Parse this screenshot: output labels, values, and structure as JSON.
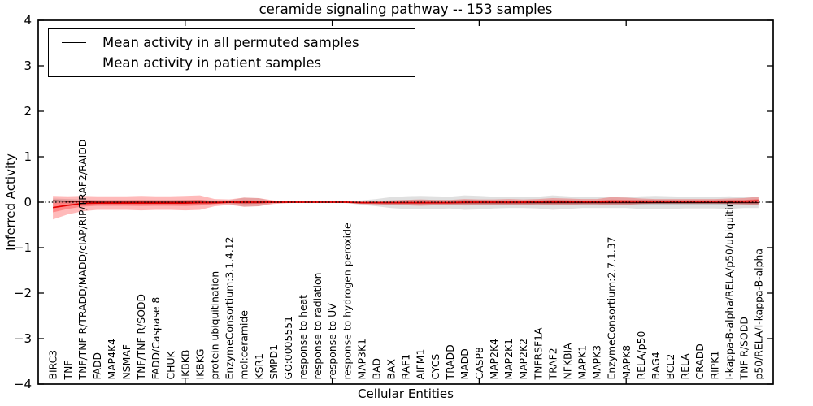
{
  "title": "ceramide signaling pathway -- 153 samples",
  "xlabel": "Cellular Entities",
  "ylabel": "Inferred Activity",
  "legend": [
    {
      "label": "Mean activity in all permuted samples",
      "color": "#000000"
    },
    {
      "label": "Mean activity in patient samples",
      "color": "#ff0000"
    }
  ],
  "y_tick_labels": [
    "4",
    "3",
    "2",
    "1",
    "0",
    "−1",
    "−2",
    "−3",
    "−4"
  ],
  "chart_data": {
    "type": "line",
    "title": "ceramide signaling pathway -- 153 samples",
    "xlabel": "Cellular Entities",
    "ylabel": "Inferred Activity",
    "ylim": [
      -4,
      4
    ],
    "y_ticks": [
      4,
      3,
      2,
      1,
      0,
      -1,
      -2,
      -3,
      -4
    ],
    "x_major_ticks": [
      10,
      20,
      30,
      40
    ],
    "grid": false,
    "legend_position": "upper left",
    "zero_line": true,
    "categories": [
      "BIRC3",
      "TNF",
      "TNF/TNF R/TRADD/MADD/cIAP/RIP/TRAF2/RAIDD",
      "FADD",
      "MAP4K4",
      "NSMAF",
      "TNF/TNF R/SODD",
      "FADD/Caspase 8",
      "CHUK",
      "IKBKB",
      "IKBKG",
      "protein ubiquitination",
      "EnzymeConsortium:3.1.4.12",
      "mol:ceramide",
      "KSR1",
      "SMPD1",
      "GO:0005551",
      "response to heat",
      "response to radiation",
      "response to UV",
      "response to hydrogen peroxide",
      "MAP3K1",
      "BAD",
      "BAX",
      "RAF1",
      "AIFM1",
      "CYCS",
      "TRADD",
      "MADD",
      "CASP8",
      "MAP2K4",
      "MAP2K1",
      "MAP2K2",
      "TNFRSF1A",
      "TRAF2",
      "NFKBIA",
      "MAPK1",
      "MAPK3",
      "EnzymeConsortium:2.7.1.37",
      "MAPK8",
      "RELA/p50",
      "BAG4",
      "BCL2",
      "RELA",
      "CRADD",
      "RIPK1",
      "I-kappa-B-alpha/RELA/p50/ubiquitin",
      "TNF R/SODD",
      "p50/RELA/I-kappa-B-alpha"
    ],
    "series": [
      {
        "name": "Mean activity in all permuted samples",
        "color": "#000000",
        "band_color": "rgba(0,0,0,0.12)",
        "values": [
          0.03,
          0.02,
          0.01,
          0,
          0,
          0,
          0,
          0,
          0,
          0,
          0,
          0,
          0,
          0,
          0,
          0,
          0,
          0,
          0,
          0,
          0,
          -0.01,
          -0.01,
          -0.01,
          -0.01,
          -0.01,
          -0.01,
          -0.01,
          -0.01,
          -0.01,
          -0.01,
          -0.01,
          -0.01,
          -0.01,
          -0.01,
          -0.01,
          -0.01,
          -0.01,
          -0.01,
          -0.01,
          -0.01,
          -0.01,
          -0.01,
          -0.01,
          -0.01,
          -0.01,
          -0.01,
          -0.01,
          -0.01
        ],
        "std": [
          0.05,
          0.05,
          0.05,
          0.05,
          0.05,
          0.05,
          0.05,
          0.05,
          0.05,
          0.05,
          0.05,
          0.04,
          0.04,
          0.1,
          0.09,
          0.02,
          0.02,
          0.02,
          0.02,
          0.02,
          0.02,
          0.05,
          0.08,
          0.12,
          0.14,
          0.15,
          0.14,
          0.13,
          0.16,
          0.15,
          0.13,
          0.12,
          0.12,
          0.13,
          0.16,
          0.14,
          0.12,
          0.12,
          0.12,
          0.12,
          0.14,
          0.15,
          0.14,
          0.13,
          0.13,
          0.13,
          0.14,
          0.12,
          0.12
        ]
      },
      {
        "name": "Mean activity in patient samples",
        "color": "#e60000",
        "band_color": "rgba(255,0,0,0.27)",
        "values": [
          -0.12,
          -0.07,
          -0.03,
          -0.02,
          -0.02,
          -0.02,
          -0.02,
          -0.02,
          -0.02,
          -0.02,
          -0.01,
          -0.01,
          0,
          0,
          0,
          0,
          0,
          0,
          0,
          0,
          0,
          -0.01,
          -0.01,
          -0.01,
          -0.01,
          -0.01,
          -0.01,
          -0.01,
          0,
          0,
          0,
          0,
          0,
          0.01,
          0.01,
          0.01,
          0.01,
          0.01,
          0.02,
          0.02,
          0.02,
          0.02,
          0.02,
          0.02,
          0.02,
          0.02,
          0.02,
          0.02,
          0.03
        ],
        "std": [
          0.26,
          0.2,
          0.17,
          0.15,
          0.15,
          0.15,
          0.16,
          0.15,
          0.15,
          0.16,
          0.16,
          0.08,
          0.06,
          0.1,
          0.09,
          0.04,
          0.02,
          0.015,
          0.015,
          0.015,
          0.02,
          0.03,
          0.04,
          0.05,
          0.06,
          0.07,
          0.06,
          0.06,
          0.07,
          0.06,
          0.06,
          0.07,
          0.06,
          0.06,
          0.08,
          0.07,
          0.06,
          0.06,
          0.09,
          0.08,
          0.06,
          0.05,
          0.05,
          0.05,
          0.05,
          0.05,
          0.06,
          0.07,
          0.09
        ]
      }
    ]
  }
}
